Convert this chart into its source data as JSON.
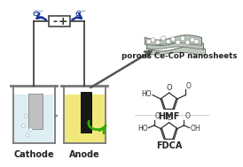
{
  "bg_color": "#ffffff",
  "cathode_label": "Cathode",
  "anode_label": "Anode",
  "nanosheet_label": "porous Ce-CoP nanosheets",
  "hmf_label": "HMF",
  "fdca_label": "FDCA",
  "battery_minus": "-",
  "battery_plus": "+",
  "electron_label": "e⁻",
  "cathode_liquid_color": "#ddeef5",
  "anode_liquid_color": "#f0e87a",
  "arrow_color": "#1a3399",
  "green_arrow_color": "#33aa00",
  "nanosheet_color": "#b8c4b8",
  "label_fontsize": 7.0,
  "structure_fontsize": 5.5,
  "annot_fontsize": 6.5
}
